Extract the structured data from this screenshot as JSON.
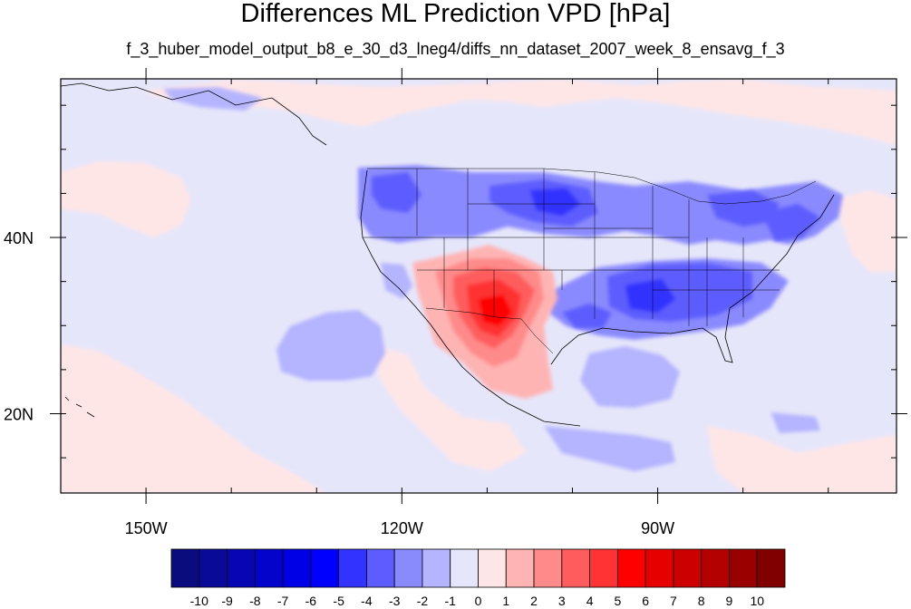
{
  "title": "Differences ML Prediction VPD [hPa]",
  "subtitle": "f_3_huber_model_output_b8_e_30_d3_lneg4/diffs_nn_dataset_2007_week_8_ensavg_f_3",
  "map": {
    "lon_range": [
      -160,
      -62
    ],
    "lat_range": [
      11,
      58
    ],
    "lon_ticks": [
      {
        "value": -150,
        "label": "150W"
      },
      {
        "value": -120,
        "label": "120W"
      },
      {
        "value": -90,
        "label": "90W"
      }
    ],
    "lat_ticks": [
      {
        "value": 40,
        "label": "40N"
      },
      {
        "value": 20,
        "label": "20N"
      }
    ],
    "background_color": "#e6e6fa"
  },
  "colorbar": {
    "labels": [
      "-10",
      "-9",
      "-8",
      "-7",
      "-6",
      "-5",
      "-4",
      "-3",
      "-2",
      "-1",
      "0",
      "1",
      "2",
      "3",
      "4",
      "5",
      "6",
      "7",
      "8",
      "9",
      "10"
    ],
    "colors": [
      "#0b0b80",
      "#0a0a99",
      "#0606b3",
      "#0303cc",
      "#0000e6",
      "#0000ff",
      "#3333ff",
      "#5d5dff",
      "#8a8aff",
      "#b4b4ff",
      "#e6e6fa",
      "#ffe6e6",
      "#ffb4b4",
      "#ff8a8a",
      "#ff5d5d",
      "#ff3333",
      "#ff0000",
      "#e60000",
      "#cc0000",
      "#b30000",
      "#990000",
      "#800000"
    ]
  }
}
